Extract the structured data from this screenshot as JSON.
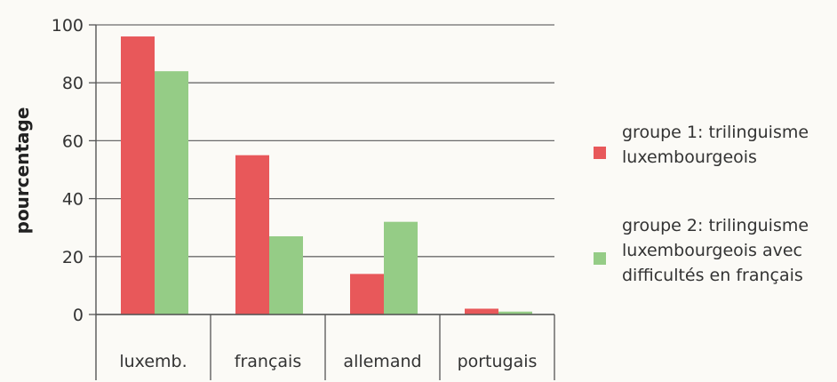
{
  "chart_data": {
    "type": "bar",
    "categories": [
      "luxemb.",
      "français",
      "allemand",
      "portugais"
    ],
    "series": [
      {
        "name": "groupe 1: trilinguisme luxembourgeois",
        "name_lines": [
          "groupe 1: trilinguisme",
          "luxembourgeois"
        ],
        "color": "#e8585a",
        "values": [
          96,
          55,
          14,
          2
        ]
      },
      {
        "name": "groupe 2: trilinguisme luxembourgeois avec difficultés en français",
        "name_lines": [
          "groupe 2: trilinguisme",
          "luxembourgeois avec",
          "difficultés en français"
        ],
        "color": "#95cc86",
        "values": [
          84,
          27,
          32,
          1
        ]
      }
    ],
    "ylabel": "pourcentage",
    "ylim": [
      0,
      100
    ],
    "yticks": [
      0,
      20,
      40,
      60,
      80,
      100
    ],
    "grid": true,
    "legend": "right"
  }
}
